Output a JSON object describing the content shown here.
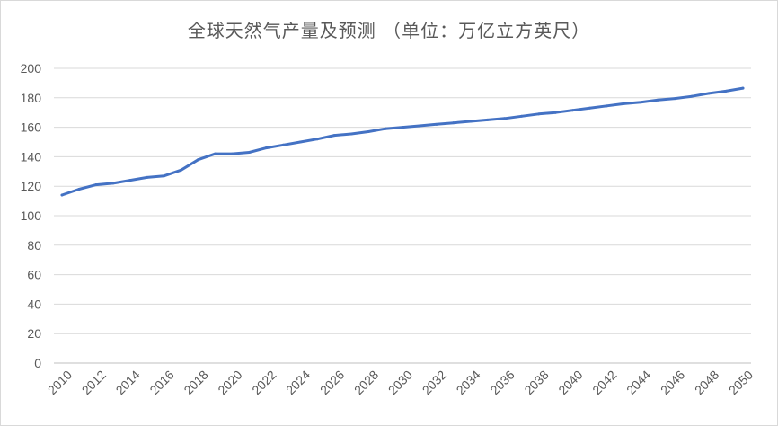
{
  "chart_data": {
    "type": "line",
    "title": "全球天然气产量及预测 （单位：万亿立方英尺）",
    "xlabel": "",
    "ylabel": "",
    "ylim": [
      0,
      200
    ],
    "yticks": [
      0,
      20,
      40,
      60,
      80,
      100,
      120,
      140,
      160,
      180,
      200
    ],
    "xticks": [
      "2010",
      "2012",
      "2014",
      "2016",
      "2018",
      "2020",
      "2022",
      "2024",
      "2026",
      "2028",
      "2030",
      "2032",
      "2034",
      "2036",
      "2038",
      "2040",
      "2042",
      "2044",
      "2046",
      "2048",
      "2050"
    ],
    "grid": true,
    "legend": "none",
    "line_color": "#4472c4",
    "x": [
      2010,
      2011,
      2012,
      2013,
      2014,
      2015,
      2016,
      2017,
      2018,
      2019,
      2020,
      2021,
      2022,
      2023,
      2024,
      2025,
      2026,
      2027,
      2028,
      2029,
      2030,
      2031,
      2032,
      2033,
      2034,
      2035,
      2036,
      2037,
      2038,
      2039,
      2040,
      2041,
      2042,
      2043,
      2044,
      2045,
      2046,
      2047,
      2048,
      2049,
      2050
    ],
    "series": [
      {
        "values": [
          114,
          118,
          121,
          122,
          124,
          126,
          127,
          131,
          138,
          142,
          142,
          143,
          146,
          148,
          150,
          152,
          154.5,
          155.5,
          157,
          159,
          160,
          161,
          162,
          163,
          164,
          165,
          166,
          167.5,
          169,
          170,
          171.5,
          173,
          174.5,
          176,
          177,
          178.5,
          179.5,
          181,
          183,
          184.5,
          186.5
        ]
      }
    ]
  }
}
